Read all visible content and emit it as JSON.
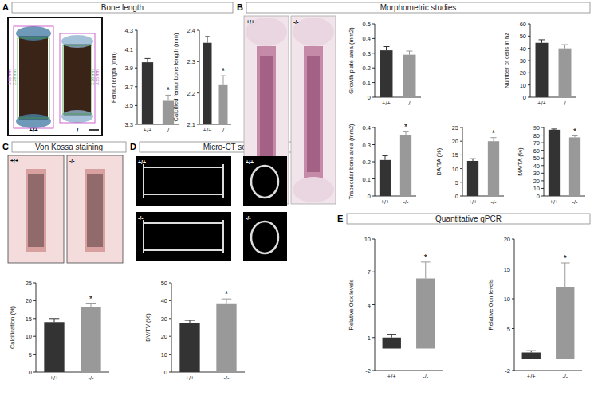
{
  "panels": [
    {
      "letter": "A",
      "title": "Bone length",
      "image_labels": [
        "+/+",
        "-/-"
      ],
      "measurements": [
        "3.98 mm",
        "2.39 mm",
        "3.55 mm",
        "2.16 mm"
      ]
    },
    {
      "letter": "B",
      "title": "Morphometric studies",
      "image_labels": [
        "+/+",
        "-/-"
      ]
    },
    {
      "letter": "C",
      "title": "Von Kossa staining",
      "image_labels": [
        "+/+",
        "-/-"
      ]
    },
    {
      "letter": "D",
      "title": "Micro-CT scanning",
      "image_labels": [
        "+/+",
        "+/+",
        "-/-",
        "-/-"
      ]
    },
    {
      "letter": "E",
      "title": "Quantitative qPCR"
    }
  ],
  "chart_data": [
    {
      "type": "bar",
      "y_label": "Femur length (mm)",
      "categories": [
        "+/+",
        "-/-"
      ],
      "values": [
        3.96,
        3.55
      ],
      "errors": [
        0.04,
        0.06
      ],
      "colors": [
        "#333333",
        "#999999"
      ],
      "ylim": [
        3.3,
        4.3
      ],
      "yticks": [
        3.3,
        3.5,
        3.7,
        3.9,
        4.1,
        4.3
      ],
      "value_annotations": [
        null,
        "*"
      ]
    },
    {
      "type": "bar",
      "y_label": "Calcified femur bone length (mm)",
      "categories": [
        "+/+",
        "-/-"
      ],
      "values": [
        2.36,
        2.225
      ],
      "errors": [
        0.02,
        0.03
      ],
      "colors": [
        "#333333",
        "#999999"
      ],
      "ylim": [
        2.1,
        2.4
      ],
      "yticks": [
        2.1,
        2.2,
        2.3,
        2.4
      ],
      "value_annotations": [
        null,
        "*"
      ]
    },
    {
      "type": "bar",
      "y_label": "Growth plate area (mm2)",
      "categories": [
        "+/+",
        "-/-"
      ],
      "values": [
        0.32,
        0.29
      ],
      "errors": [
        0.025,
        0.025
      ],
      "colors": [
        "#333333",
        "#999999"
      ],
      "ylim": [
        0,
        0.5
      ],
      "yticks": [
        0,
        0.1,
        0.2,
        0.3,
        0.4,
        0.5
      ]
    },
    {
      "type": "bar",
      "y_label": "Number of cells in hz",
      "categories": [
        "+/+",
        "-/-"
      ],
      "values": [
        44.5,
        40
      ],
      "errors": [
        2.5,
        3
      ],
      "colors": [
        "#333333",
        "#999999"
      ],
      "ylim": [
        0,
        60
      ],
      "yticks": [
        0,
        10,
        20,
        30,
        40,
        50,
        60
      ]
    },
    {
      "type": "bar",
      "y_label": "Trabecular bone area (mm2)",
      "categories": [
        "+/+",
        "-/-"
      ],
      "values": [
        0.21,
        0.355
      ],
      "errors": [
        0.025,
        0.02
      ],
      "colors": [
        "#333333",
        "#999999"
      ],
      "ylim": [
        0,
        0.4
      ],
      "yticks": [
        0,
        0.1,
        0.2,
        0.3,
        0.4
      ],
      "value_annotations": [
        null,
        "*"
      ]
    },
    {
      "type": "bar",
      "y_label": "BA/TA (%)",
      "categories": [
        "+/+",
        "-/-"
      ],
      "values": [
        12.8,
        20
      ],
      "errors": [
        0.8,
        1.3
      ],
      "colors": [
        "#333333",
        "#999999"
      ],
      "ylim": [
        0,
        25
      ],
      "yticks": [
        0,
        5,
        10,
        15,
        20,
        25
      ],
      "value_annotations": [
        null,
        "*"
      ]
    },
    {
      "type": "bar",
      "y_label": "MA/TA (%)",
      "categories": [
        "+/+",
        "-/-"
      ],
      "values": [
        87,
        77
      ],
      "errors": [
        1,
        2
      ],
      "colors": [
        "#333333",
        "#999999"
      ],
      "ylim": [
        0,
        90
      ],
      "yticks": [
        0,
        10,
        20,
        30,
        40,
        50,
        60,
        70,
        80,
        90
      ],
      "value_annotations": [
        null,
        "*"
      ]
    },
    {
      "type": "bar",
      "y_label": "Calcification (%)",
      "categories": [
        "+/+",
        "-/-"
      ],
      "values": [
        14,
        18.3
      ],
      "errors": [
        1,
        1
      ],
      "colors": [
        "#333333",
        "#999999"
      ],
      "ylim": [
        0,
        25
      ],
      "yticks": [
        0,
        5,
        10,
        15,
        20,
        25
      ],
      "value_annotations": [
        null,
        "*"
      ]
    },
    {
      "type": "bar",
      "y_label": "BV/TV (%)",
      "categories": [
        "+/+",
        "-/-"
      ],
      "values": [
        27.5,
        38.5
      ],
      "errors": [
        1.5,
        2.5
      ],
      "colors": [
        "#333333",
        "#999999"
      ],
      "ylim": [
        0,
        50
      ],
      "yticks": [
        0,
        10,
        20,
        30,
        40,
        50
      ],
      "value_annotations": [
        null,
        "*"
      ]
    },
    {
      "type": "bar",
      "y_label": "Relative Ocx levels",
      "categories": [
        "+/+",
        "-/-"
      ],
      "values": [
        1,
        6.4
      ],
      "errors": [
        0.3,
        1.5
      ],
      "colors": [
        "#333333",
        "#999999"
      ],
      "ylim": [
        -2,
        10
      ],
      "yticks": [
        -2,
        1,
        4,
        7,
        10
      ],
      "value_annotations": [
        null,
        "*"
      ]
    },
    {
      "type": "bar",
      "y_label": "Relative Ocn levels",
      "categories": [
        "+/+",
        "-/-"
      ],
      "values": [
        1,
        12
      ],
      "errors": [
        0.3,
        4
      ],
      "colors": [
        "#333333",
        "#999999"
      ],
      "ylim": [
        -2,
        20
      ],
      "yticks": [
        -2,
        5,
        10,
        15,
        20
      ],
      "value_annotations": [
        null,
        "*"
      ]
    }
  ]
}
